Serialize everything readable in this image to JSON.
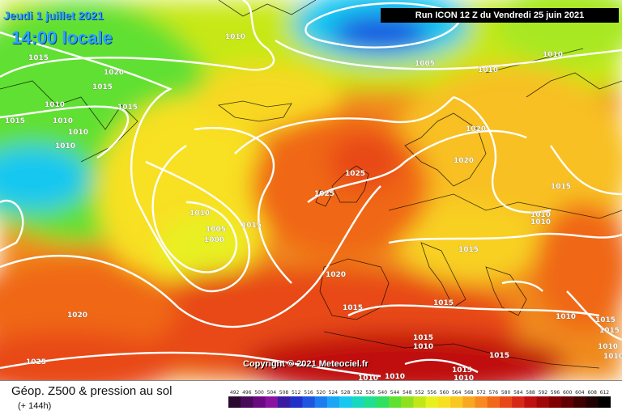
{
  "header": {
    "date_label": "Jeudi 1 juillet 2021",
    "time_label": "14:00 locale",
    "run_label": "Run ICON 12 Z du Vendredi 25 juin 2021"
  },
  "copyright": "Copyright © 2021 Meteociel.fr",
  "footer": {
    "title": "Géop. Z500 & pression au sol",
    "subtitle": "(+ 144h)"
  },
  "scale": {
    "ticks": [
      "492",
      "496",
      "500",
      "504",
      "508",
      "512",
      "516",
      "520",
      "524",
      "528",
      "532",
      "536",
      "540",
      "544",
      "548",
      "552",
      "556",
      "560",
      "564",
      "568",
      "572",
      "576",
      "580",
      "584",
      "588",
      "592",
      "596",
      "600",
      "604",
      "608",
      "612"
    ],
    "colors": [
      "#2a0830",
      "#4a0a5a",
      "#6a0a80",
      "#8a12a0",
      "#3a1aa0",
      "#2030c8",
      "#1f54e0",
      "#1d7cf0",
      "#1ba6f5",
      "#18c8f0",
      "#18d8c0",
      "#20e090",
      "#30e060",
      "#60e030",
      "#90e020",
      "#c0e818",
      "#e8f020",
      "#f8e020",
      "#f8c820",
      "#f8a820",
      "#f88820",
      "#f06818",
      "#e84818",
      "#d82818",
      "#c01010",
      "#a00808",
      "#800000",
      "#600000",
      "#400000",
      "#200000",
      "#000000"
    ]
  },
  "isobar_labels": [
    {
      "text": "1010"
    },
    {
      "text": "1015"
    },
    {
      "text": "1020"
    },
    {
      "text": "1015"
    },
    {
      "text": "1010"
    },
    {
      "text": "1015"
    },
    {
      "text": "1010"
    },
    {
      "text": "1010"
    },
    {
      "text": "1015"
    },
    {
      "text": "1010"
    },
    {
      "text": "1005"
    },
    {
      "text": "1010"
    },
    {
      "text": "1010"
    },
    {
      "text": "1020"
    },
    {
      "text": "1020"
    },
    {
      "text": "1025"
    },
    {
      "text": "1025"
    },
    {
      "text": "1010"
    },
    {
      "text": "1005"
    },
    {
      "text": "1000"
    },
    {
      "text": "1015"
    },
    {
      "text": "1015"
    },
    {
      "text": "1010"
    },
    {
      "text": "1010"
    },
    {
      "text": "1015"
    },
    {
      "text": "1020"
    },
    {
      "text": "1015"
    },
    {
      "text": "1015"
    },
    {
      "text": "1010"
    },
    {
      "text": "1015"
    },
    {
      "text": "1020"
    },
    {
      "text": "1025"
    },
    {
      "text": "1015"
    },
    {
      "text": "1010"
    },
    {
      "text": "1015"
    },
    {
      "text": "1010"
    },
    {
      "text": "1010"
    },
    {
      "text": "1015"
    },
    {
      "text": "1010"
    },
    {
      "text": "1010"
    },
    {
      "text": "1015"
    },
    {
      "text": "1010"
    }
  ]
}
